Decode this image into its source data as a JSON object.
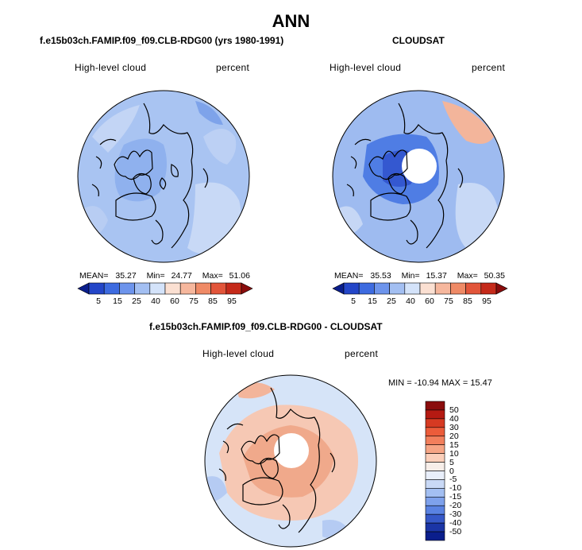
{
  "title": "ANN",
  "panels": [
    {
      "id": "model",
      "heading": "f.e15b03ch.FAMIP.f09_f09.CLB-RDG00 (yrs 1980-1991)",
      "left_label": "High-level cloud",
      "right_label": "percent",
      "stats": {
        "mean_label": "MEAN=",
        "mean": "35.27",
        "min_label": "Min=",
        "min": "24.77",
        "max_label": "Max=",
        "max": "51.06"
      },
      "colorbar_ticks": [
        "5",
        "15",
        "25",
        "40",
        "60",
        "75",
        "85",
        "95"
      ]
    },
    {
      "id": "obs",
      "heading": "CLOUDSAT",
      "left_label": "High-level cloud",
      "right_label": "percent",
      "stats": {
        "mean_label": "MEAN=",
        "mean": "35.53",
        "min_label": "Min=",
        "min": "15.37",
        "max_label": "Max=",
        "max": "50.35"
      },
      "colorbar_ticks": [
        "5",
        "15",
        "25",
        "40",
        "60",
        "75",
        "85",
        "95"
      ]
    },
    {
      "id": "diff",
      "heading": "f.e15b03ch.FAMIP.f09_f09.CLB-RDG00 - CLOUDSAT",
      "left_label": "High-level cloud",
      "right_label": "percent",
      "minmax_text": "MIN = -10.94  MAX =  15.47",
      "colorbar_ticks": [
        "50",
        "40",
        "30",
        "20",
        "15",
        "10",
        "5",
        "0",
        "-5",
        "-10",
        "-15",
        "-20",
        "-30",
        "-40",
        "-50"
      ]
    }
  ],
  "colors": {
    "abs_scale": [
      "#0a1e8c",
      "#2446c8",
      "#3d6be0",
      "#6d94ec",
      "#a3bff2",
      "#d4e3fa",
      "#fbe0d2",
      "#f6b79d",
      "#ef8a66",
      "#e2553a",
      "#c52a1a",
      "#8a0c0c"
    ],
    "diff_scale": [
      "#8a0c0c",
      "#b51a12",
      "#d63a22",
      "#ec5c3a",
      "#f27f5c",
      "#f6a585",
      "#fbcfba",
      "#f7eee9",
      "#e9effb",
      "#c9d9f6",
      "#a3bff2",
      "#7ea1ec",
      "#5a82e2",
      "#3658c8",
      "#1b35a6",
      "#0a1e8c"
    ],
    "ocean_base_model": "#a9c4f2",
    "ocean_base_obs": "#9ebbf0",
    "ocean_base_diff": "#d6e4f8"
  }
}
